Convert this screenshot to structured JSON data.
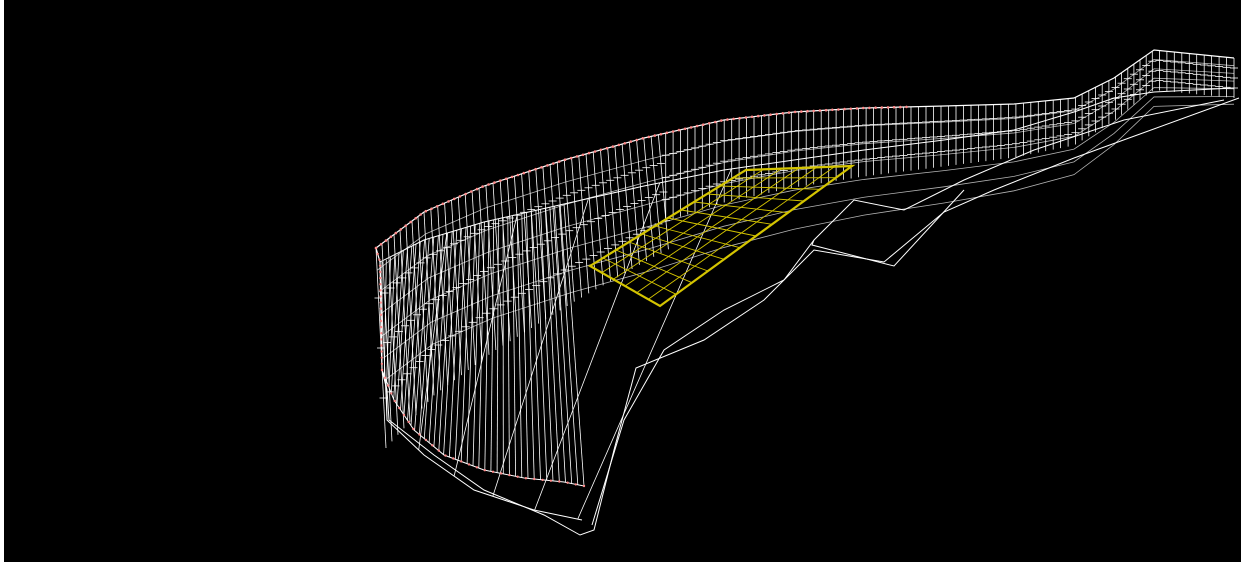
{
  "viewport": {
    "background_color": "#000000",
    "wire_color": "#ffffff",
    "edge_node_color": "#ff8a8a",
    "highlight_color": "#d4c400"
  },
  "model": {
    "type": "wireframe-structure",
    "highlighted_region": "selected-panel"
  }
}
